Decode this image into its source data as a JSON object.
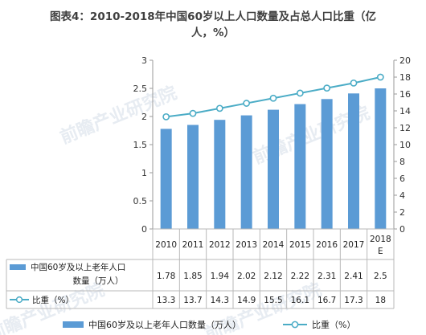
{
  "chart_data": {
    "type": "bar",
    "title_line1": "图表4：2010-2018年中国60岁以上人口数量及占总人口比重（亿",
    "title_line2": "人，%）",
    "categories": [
      "2010",
      "2011",
      "2012",
      "2013",
      "2014",
      "2015",
      "2016",
      "2017",
      "2018E"
    ],
    "category_labels": [
      [
        "2010"
      ],
      [
        "2011"
      ],
      [
        "2012"
      ],
      [
        "2013"
      ],
      [
        "2014"
      ],
      [
        "2015"
      ],
      [
        "2016"
      ],
      [
        "2017"
      ],
      [
        "2018",
        "E"
      ]
    ],
    "series": [
      {
        "name": "中国60岁及以上老年人口数量（万人）",
        "table_label": [
          "中国60岁及以上老年人口",
          "数量（万人）"
        ],
        "type": "bar",
        "axis": "left",
        "color": "#5b9bd5",
        "values": [
          1.78,
          1.85,
          1.94,
          2.02,
          2.12,
          2.22,
          2.31,
          2.41,
          2.5
        ],
        "display": [
          "1.78",
          "1.85",
          "1.94",
          "2.02",
          "2.12",
          "2.22",
          "2.31",
          "2.41",
          "2.5"
        ]
      },
      {
        "name": "比重（%）",
        "table_label": [
          "比重（%）"
        ],
        "type": "line",
        "axis": "right",
        "color": "#4bacc6",
        "values": [
          13.3,
          13.7,
          14.3,
          14.9,
          15.5,
          16.1,
          16.7,
          17.3,
          18
        ],
        "display": [
          "13.3",
          "13.7",
          "14.3",
          "14.9",
          "15.5",
          "16.1",
          "16.7",
          "17.3",
          "18"
        ]
      }
    ],
    "left_axis": {
      "ylim": [
        0,
        3
      ],
      "ticks": [
        "0",
        "0.5",
        "1",
        "1.5",
        "2",
        "2.5",
        "3"
      ]
    },
    "right_axis": {
      "ylim": [
        0,
        20
      ],
      "ticks": [
        "0",
        "2",
        "4",
        "6",
        "8",
        "10",
        "12",
        "14",
        "16",
        "18",
        "20"
      ]
    },
    "grid": false,
    "legend_position": "bottom",
    "legend": [
      "中国60岁及以上老年人口数量（万人）",
      "比重（%）"
    ],
    "watermark": "前瞻产业研究院"
  }
}
